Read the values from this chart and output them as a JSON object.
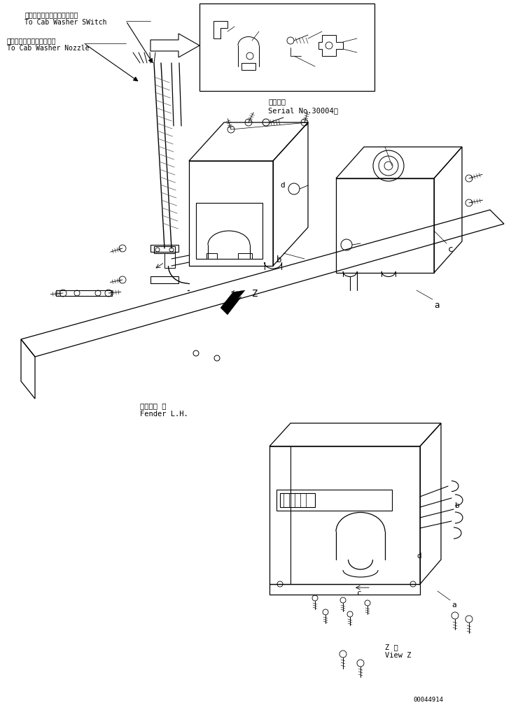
{
  "bg_color": "#ffffff",
  "line_color": "#000000",
  "fig_width": 7.5,
  "fig_height": 10.05,
  "dpi": 100,
  "part_number": "00044914",
  "labels": {
    "jp1": "キャブウォッシャスイッチへ",
    "en1": "To Cab Washer SWitch",
    "jp2": "キャブウォッシャノズルへ",
    "en2": "To Cab Washer Nozzle",
    "jp3": "適用号機",
    "en3": "Serial No.30004～",
    "jp4": "フェンダ 左",
    "en4": "Fender L.H.",
    "jp5": "Z 視",
    "en5": "View Z",
    "label_a": "a",
    "label_b": "b",
    "label_c": "c",
    "label_d": "d",
    "label_z": "Z"
  }
}
